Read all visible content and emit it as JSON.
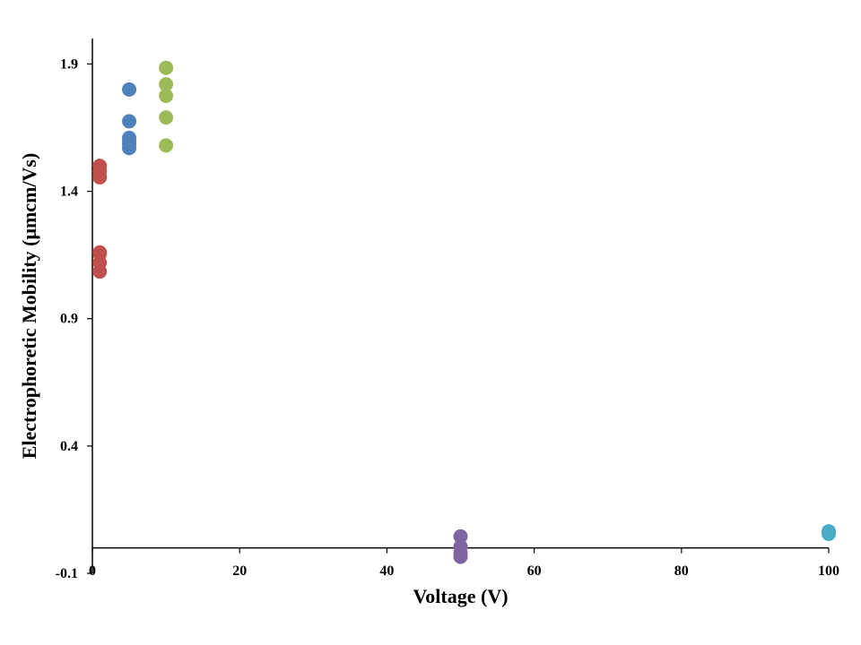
{
  "chart_data": {
    "type": "scatter",
    "title": "",
    "xlabel": "Voltage (V)",
    "ylabel": "Electrophoretic Mobility (μmcm/Vs)",
    "xlim": [
      0,
      100
    ],
    "ylim": [
      -0.1,
      2.0
    ],
    "x_axis_crosses_y_at": 0,
    "x_ticks": [
      0,
      20,
      40,
      60,
      80,
      100
    ],
    "x_tick_labels": [
      "0",
      "20",
      "40",
      "60",
      "80",
      "100"
    ],
    "y_ticks": [
      -0.1,
      0.4,
      0.9,
      1.4,
      1.9
    ],
    "y_tick_labels": [
      "-0.1",
      "0.4",
      "0.9",
      "1.4",
      "1.9"
    ],
    "grid": false,
    "legend": "none",
    "series": [
      {
        "color": "#c0504d",
        "x": [
          1,
          1,
          1,
          1,
          1,
          1,
          1
        ],
        "y": [
          1.5,
          1.48,
          1.455,
          1.16,
          1.155,
          1.12,
          1.085
        ]
      },
      {
        "color": "#4f81bd",
        "x": [
          5,
          5,
          5,
          5,
          5,
          5
        ],
        "y": [
          1.8,
          1.675,
          1.61,
          1.595,
          1.585,
          1.57
        ]
      },
      {
        "color": "#9bbb59",
        "x": [
          10,
          10,
          10,
          10,
          10
        ],
        "y": [
          1.885,
          1.82,
          1.775,
          1.69,
          1.58
        ]
      },
      {
        "color": "#8064a2",
        "x": [
          50,
          50,
          50,
          50
        ],
        "y": [
          0.045,
          0.005,
          -0.02,
          -0.035
        ]
      },
      {
        "color": "#4bacc6",
        "x": [
          100,
          100
        ],
        "y": [
          0.065,
          0.055
        ]
      }
    ]
  }
}
